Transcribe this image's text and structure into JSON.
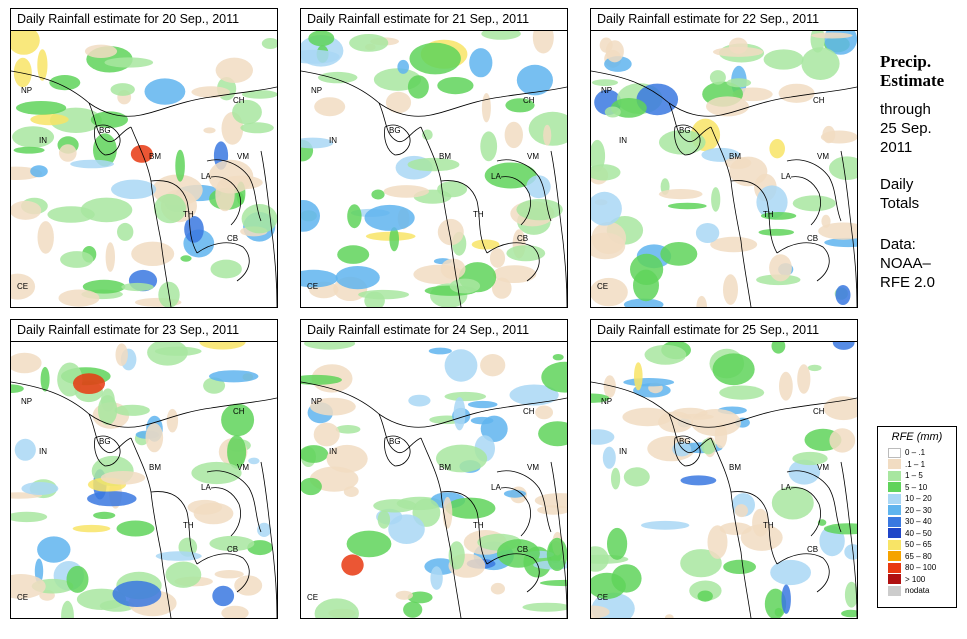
{
  "panels": [
    {
      "title": "Daily Rainfall estimate for  20 Sep., 2011"
    },
    {
      "title": "Daily Rainfall estimate for  21 Sep., 2011"
    },
    {
      "title": "Daily Rainfall estimate for  22 Sep., 2011"
    },
    {
      "title": "Daily Rainfall estimate for  23 Sep., 2011"
    },
    {
      "title": "Daily Rainfall estimate for  24 Sep., 2011"
    },
    {
      "title": "Daily Rainfall estimate for  25 Sep., 2011"
    }
  ],
  "country_labels": [
    "NP",
    "IN",
    "BG",
    "CH",
    "BM",
    "VM",
    "LA",
    "TH",
    "CB",
    "CE"
  ],
  "side_text": {
    "title_line1": "Precip.",
    "title_line2": "Estimate",
    "through": "through",
    "date_line1": "25 Sep.",
    "date_line2": "2011",
    "mode_line1": "Daily",
    "mode_line2": "Totals",
    "data_line1": "Data:",
    "data_line2": "NOAA–",
    "data_line3": "RFE 2.0"
  },
  "legend": {
    "title": "RFE (mm)",
    "items": [
      {
        "label": "0 – .1",
        "color": "#ffffff"
      },
      {
        "label": ".1 – 1",
        "color": "#f1dcc2"
      },
      {
        "label": "1 – 5",
        "color": "#a8e6a0"
      },
      {
        "label": "5 – 10",
        "color": "#5fd35a"
      },
      {
        "label": "10 – 20",
        "color": "#a9d7f5"
      },
      {
        "label": "20 – 30",
        "color": "#5fb4ee"
      },
      {
        "label": "30 – 40",
        "color": "#3a78e0"
      },
      {
        "label": "40 – 50",
        "color": "#1f45c8"
      },
      {
        "label": "50 – 65",
        "color": "#f8e466"
      },
      {
        "label": "65 – 80",
        "color": "#f5a300"
      },
      {
        "label": "80 – 100",
        "color": "#e83810"
      },
      {
        "label": "> 100",
        "color": "#b01010"
      },
      {
        "label": "nodata",
        "color": "#cccccc"
      }
    ]
  }
}
